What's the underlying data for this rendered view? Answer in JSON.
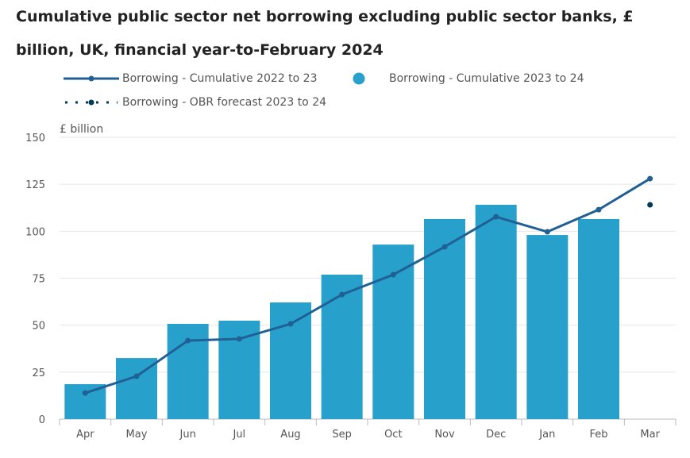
{
  "chart_data": {
    "type": "bar",
    "title": "Cumulative public sector net borrowing excluding public sector banks, £ billion, UK, financial year-to-February 2024",
    "ylabel": "£ billion",
    "ylim": [
      0,
      150
    ],
    "yticks": [
      0,
      25,
      50,
      75,
      100,
      125,
      150
    ],
    "categories": [
      "Apr",
      "May",
      "Jun",
      "Jul",
      "Aug",
      "Sep",
      "Oct",
      "Nov",
      "Dec",
      "Jan",
      "Feb",
      "Mar"
    ],
    "series": [
      {
        "name": "Borrowing - Cumulative 2022 to 23",
        "type": "line",
        "color": "#206095",
        "values": [
          13.9,
          22.8,
          41.8,
          42.7,
          50.7,
          66.3,
          76.9,
          91.7,
          107.7,
          99.7,
          111.5,
          128.0
        ]
      },
      {
        "name": "Borrowing - Cumulative 2023 to 24",
        "type": "bar",
        "color": "#27a0cc",
        "values": [
          18.6,
          32.5,
          50.7,
          52.4,
          62.1,
          76.9,
          92.9,
          106.5,
          114.1,
          98.0,
          106.5,
          null
        ]
      },
      {
        "name": "Borrowing - OBR forecast 2023 to 24",
        "type": "point",
        "color": "#003c57",
        "values": [
          null,
          null,
          null,
          null,
          null,
          null,
          null,
          null,
          null,
          null,
          null,
          114.1
        ]
      }
    ],
    "legend": "top"
  }
}
